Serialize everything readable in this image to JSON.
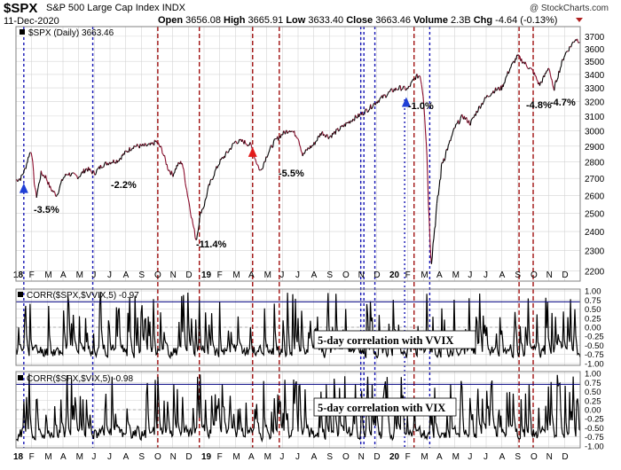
{
  "header": {
    "symbol": "$SPX",
    "name": "S&P 500 Large Cap Index",
    "exchange": "INDX",
    "date": "11-Dec-2020",
    "watermark": "@ StockCharts.com",
    "quote": [
      {
        "label": "Open",
        "value": "3656.08"
      },
      {
        "label": "High",
        "value": "3665.91"
      },
      {
        "label": "Low",
        "value": "3633.40"
      },
      {
        "label": "Close",
        "value": "3663.46"
      },
      {
        "label": "Volume",
        "value": "2.3B"
      },
      {
        "label": "Chg",
        "value": "-4.64 (-0.13%)"
      }
    ]
  },
  "colors": {
    "price_up": "#000000",
    "price_down": "#8b0c2c",
    "red_marker": "#a01010",
    "blue_marker": "#1414b4",
    "threshold": "#000080",
    "up_arrow": "#1f3fd6",
    "red_arrow": "#e21b1b",
    "grid": "#d4d4d4",
    "border": "#808080"
  },
  "chart_data": [
    {
      "type": "line",
      "panel": "price",
      "legend": "$SPX (Daily) 3663.46",
      "y_scale": "log",
      "ylim": [
        2150,
        3780
      ],
      "yticks": [
        2200,
        2300,
        2400,
        2500,
        2600,
        2700,
        2800,
        2900,
        3000,
        3100,
        3200,
        3300,
        3400,
        3500,
        3600,
        3700
      ],
      "x_range": [
        0,
        36
      ],
      "x_unit": "months since start of 2018",
      "grid": true,
      "series": [
        {
          "values_x": [
            0,
            0.3,
            0.6,
            0.85,
            1.0,
            1.15,
            1.3,
            1.6,
            1.9,
            2.2,
            2.6,
            3.0,
            3.3,
            3.6,
            4.0,
            4.5,
            5.0,
            5.5,
            6.0,
            6.5,
            7.0,
            7.5,
            8.0,
            8.6,
            8.95,
            9.3,
            9.7,
            10.0,
            10.3,
            10.6,
            10.9,
            11.2,
            11.5,
            11.8,
            12.0,
            12.3,
            12.7,
            13.0,
            13.5,
            14.0,
            14.5,
            15.0,
            15.3,
            15.6,
            16.0,
            16.5,
            17.0,
            17.5,
            18.0,
            18.3,
            18.6,
            19.0,
            19.5,
            20.0,
            20.5,
            21.0,
            21.5,
            22.0,
            22.5,
            23.0,
            23.5,
            24.0,
            24.5,
            25.0,
            25.5,
            25.8,
            26.0,
            26.2,
            26.35,
            26.5,
            26.8,
            27.2,
            27.6,
            28.0,
            28.5,
            29.0,
            29.5,
            30.0,
            30.5,
            31.0,
            31.5,
            32.0,
            32.5,
            33.0,
            33.4,
            33.7,
            34.0,
            34.3,
            34.6,
            35.0,
            35.4,
            35.7,
            36.0
          ],
          "values_y": [
            2690,
            2700,
            2760,
            2850,
            2872,
            2690,
            2590,
            2730,
            2710,
            2640,
            2600,
            2700,
            2730,
            2720,
            2710,
            2760,
            2730,
            2780,
            2800,
            2810,
            2860,
            2900,
            2900,
            2905,
            2930,
            2880,
            2760,
            2720,
            2780,
            2800,
            2630,
            2480,
            2350,
            2510,
            2540,
            2650,
            2740,
            2800,
            2860,
            2930,
            2930,
            2905,
            2810,
            2740,
            2840,
            2930,
            2980,
            3010,
            2960,
            2840,
            2880,
            2910,
            2990,
            2960,
            3000,
            3040,
            3080,
            3110,
            3150,
            3200,
            3240,
            3280,
            3300,
            3290,
            3380,
            3393,
            3230,
            2900,
            2480,
            2240,
            2490,
            2800,
            2900,
            3020,
            3100,
            3050,
            3150,
            3230,
            3280,
            3300,
            3440,
            3540,
            3480,
            3420,
            3320,
            3380,
            3460,
            3280,
            3400,
            3550,
            3620,
            3680,
            3660
          ]
        }
      ],
      "annotations": [
        "-3.5%",
        "-2.2%",
        "-11.4%",
        "-5.5%",
        "-1.0%",
        "-4.8%",
        "-4.7%"
      ]
    },
    {
      "type": "line",
      "panel": "corr_vvix",
      "legend": "CORR($SPX,$VVIX,5) -0.97",
      "ylim": [
        -1.0,
        1.0
      ],
      "yticks": [
        "1.00",
        "0.75",
        "0.50",
        "0.25",
        "0.00",
        "-0.25",
        "-0.50",
        "-0.75",
        "-1.00"
      ],
      "threshold": 0.7,
      "caption": "5-day correlation with VVIX"
    },
    {
      "type": "line",
      "panel": "corr_vix",
      "legend": "CORR($SPX,$VIX,5) -0.98",
      "ylim": [
        -1.0,
        1.0
      ],
      "yticks": [
        "1.00",
        "0.75",
        "0.50",
        "0.25",
        "0.00",
        "-0.25",
        "-0.50",
        "-0.75",
        "-1.00"
      ],
      "threshold": 0.7,
      "caption": "5-day correlation with VIX"
    }
  ],
  "x_axis": {
    "tick_labels": [
      "18",
      "F",
      "M",
      "A",
      "M",
      "J",
      "J",
      "A",
      "S",
      "O",
      "N",
      "D",
      "19",
      "F",
      "M",
      "A",
      "M",
      "J",
      "J",
      "A",
      "S",
      "O",
      "N",
      "D",
      "20",
      "F",
      "M",
      "A",
      "M",
      "J",
      "J",
      "A",
      "S",
      "O",
      "N",
      "D"
    ]
  },
  "markers": {
    "red_months": [
      9.05,
      11.7,
      15.1,
      16.8,
      25.4,
      32.1,
      33.0
    ],
    "blue_months": [
      0.5,
      4.9,
      22.0,
      22.2,
      22.9,
      26.4
    ],
    "blue_dotted_months": [
      24.8
    ],
    "up_arrows": [
      {
        "x": 0.5,
        "y": 2640,
        "kind": "blue"
      },
      {
        "x": 15.1,
        "y": 2860,
        "kind": "red"
      },
      {
        "x": 24.9,
        "y": 3195,
        "kind": "blue"
      }
    ]
  }
}
